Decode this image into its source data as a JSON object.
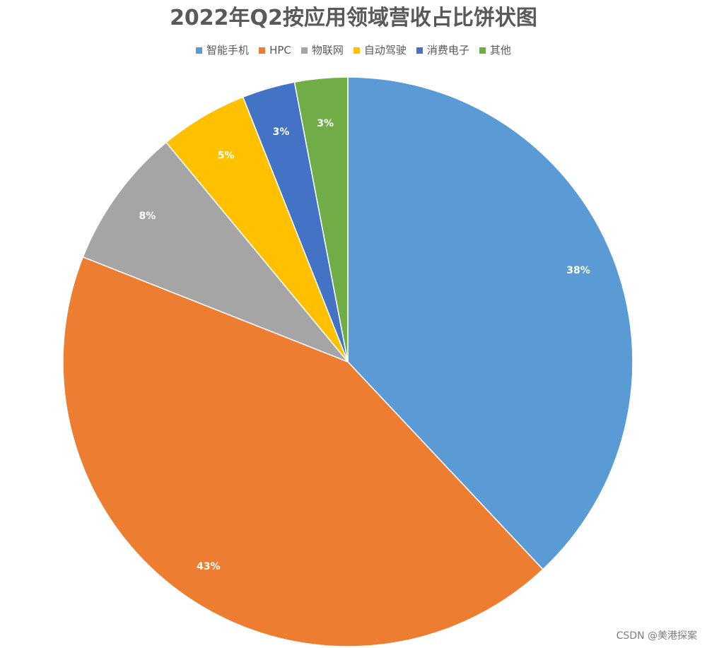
{
  "chart_data": {
    "type": "pie",
    "title": "2022年Q2按应用领域营收占比饼状图",
    "categories": [
      "智能手机",
      "HPC",
      "物联网",
      "自动驾驶",
      "消费电子",
      "其他"
    ],
    "values": [
      38,
      43,
      8,
      5,
      3,
      3
    ],
    "value_labels": [
      "38%",
      "43%",
      "8%",
      "5%",
      "3%",
      "3%"
    ],
    "colors": [
      "#5B9BD5",
      "#ED7D31",
      "#A5A5A5",
      "#FFC000",
      "#4472C4",
      "#70AD47"
    ],
    "legend_position": "top",
    "start_angle": "12 o'clock, clockwise"
  },
  "watermark": "CSDN @美港探案"
}
